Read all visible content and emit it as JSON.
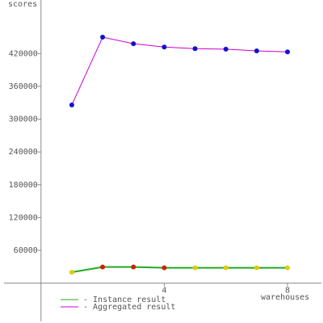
{
  "chart_data": {
    "type": "line",
    "ylabel": "scores",
    "xlabel": "warehouses",
    "x": [
      1,
      2,
      3,
      4,
      5,
      6,
      7,
      8
    ],
    "series": [
      {
        "name": "- Instance result",
        "color": "#22aa22",
        "marker_colors": [
          "#ddcc00",
          "#cc2200",
          "#cc2200",
          "#cc2200",
          "#ddcc00",
          "#ddcc00",
          "#ddcc00",
          "#ddcc00"
        ],
        "values": [
          20000,
          29500,
          29500,
          28000,
          28000,
          28000,
          28000,
          28000
        ]
      },
      {
        "name": "- Aggregated result",
        "color": "#cc00cc",
        "marker_color": "#1111cc",
        "values": [
          326000,
          450000,
          438000,
          432000,
          429000,
          428000,
          425000,
          423000
        ]
      }
    ],
    "xlim": [
      -1.2,
      9.1
    ],
    "ylim": [
      -70000,
      518000
    ],
    "xticks": [
      4,
      8
    ],
    "yticks": [
      60000,
      120000,
      180000,
      240000,
      300000,
      360000,
      420000
    ]
  }
}
